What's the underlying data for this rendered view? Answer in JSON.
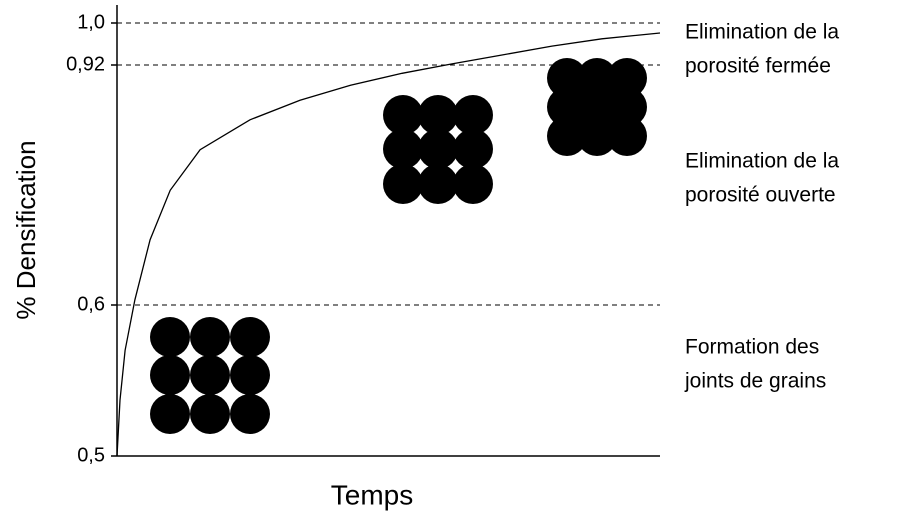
{
  "chart_data": {
    "type": "line",
    "y_label": "% Densification",
    "x_label": "Temps",
    "x": [
      0,
      0.55,
      1.5,
      3.3,
      6.1,
      9.8,
      15.3,
      24.5,
      33.7,
      43,
      52.5,
      61.7,
      70.9,
      80.1,
      89.3,
      100
    ],
    "values": [
      0.5,
      0.537,
      0.57,
      0.607,
      0.687,
      0.753,
      0.807,
      0.847,
      0.873,
      0.893,
      0.909,
      0.922,
      0.939,
      0.956,
      0.97,
      0.981
    ],
    "color": "#000000",
    "xlim": [
      0,
      100
    ],
    "ylim": [
      0.5,
      1.0
    ],
    "yticks": [
      {
        "value": 0.5,
        "label": "0,5"
      },
      {
        "value": 0.6,
        "label": "0,6"
      },
      {
        "value": 0.92,
        "label": "0,92"
      },
      {
        "value": 1.0,
        "label": "1,0"
      }
    ],
    "grid": "dashed",
    "annotations": [
      [
        "Elimination de la",
        "porosité fermée"
      ],
      [
        "Elimination de la",
        "porosité ouverte"
      ],
      [
        "Formation des",
        "joints de grains"
      ]
    ]
  }
}
